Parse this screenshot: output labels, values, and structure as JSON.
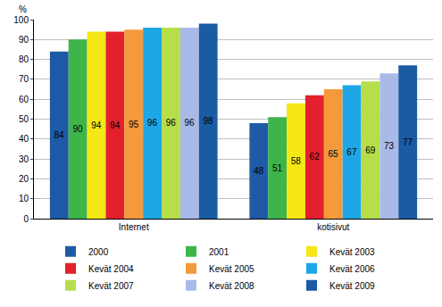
{
  "chart_data": {
    "type": "bar",
    "y_label": "%",
    "categories": [
      "Internet",
      "kotisivut"
    ],
    "series": [
      {
        "name": "2000",
        "color": "#1f5aa6",
        "values": [
          84,
          48
        ]
      },
      {
        "name": "2001",
        "color": "#3db54a",
        "values": [
          90,
          51
        ]
      },
      {
        "name": "Kevät 2003",
        "color": "#f5e616",
        "values": [
          94,
          58
        ]
      },
      {
        "name": "Kevät 2004",
        "color": "#e3202b",
        "values": [
          94,
          62
        ]
      },
      {
        "name": "Kevät 2005",
        "color": "#f49a3c",
        "values": [
          95,
          65
        ]
      },
      {
        "name": "Kevät 2006",
        "color": "#1ea7e6",
        "values": [
          96,
          67
        ]
      },
      {
        "name": "Kevät 2007",
        "color": "#b5de4a",
        "values": [
          96,
          69
        ]
      },
      {
        "name": "Kevät 2008",
        "color": "#a9b9e8",
        "values": [
          96,
          73
        ]
      },
      {
        "name": "Kevät 2009",
        "color": "#1a5ba3",
        "values": [
          98,
          77
        ]
      }
    ],
    "ylim": [
      0,
      100
    ],
    "yticks": [
      0,
      10,
      20,
      30,
      40,
      50,
      60,
      70,
      80,
      90,
      100
    ],
    "grid": true,
    "legend": "bottom",
    "data_labels": true
  }
}
